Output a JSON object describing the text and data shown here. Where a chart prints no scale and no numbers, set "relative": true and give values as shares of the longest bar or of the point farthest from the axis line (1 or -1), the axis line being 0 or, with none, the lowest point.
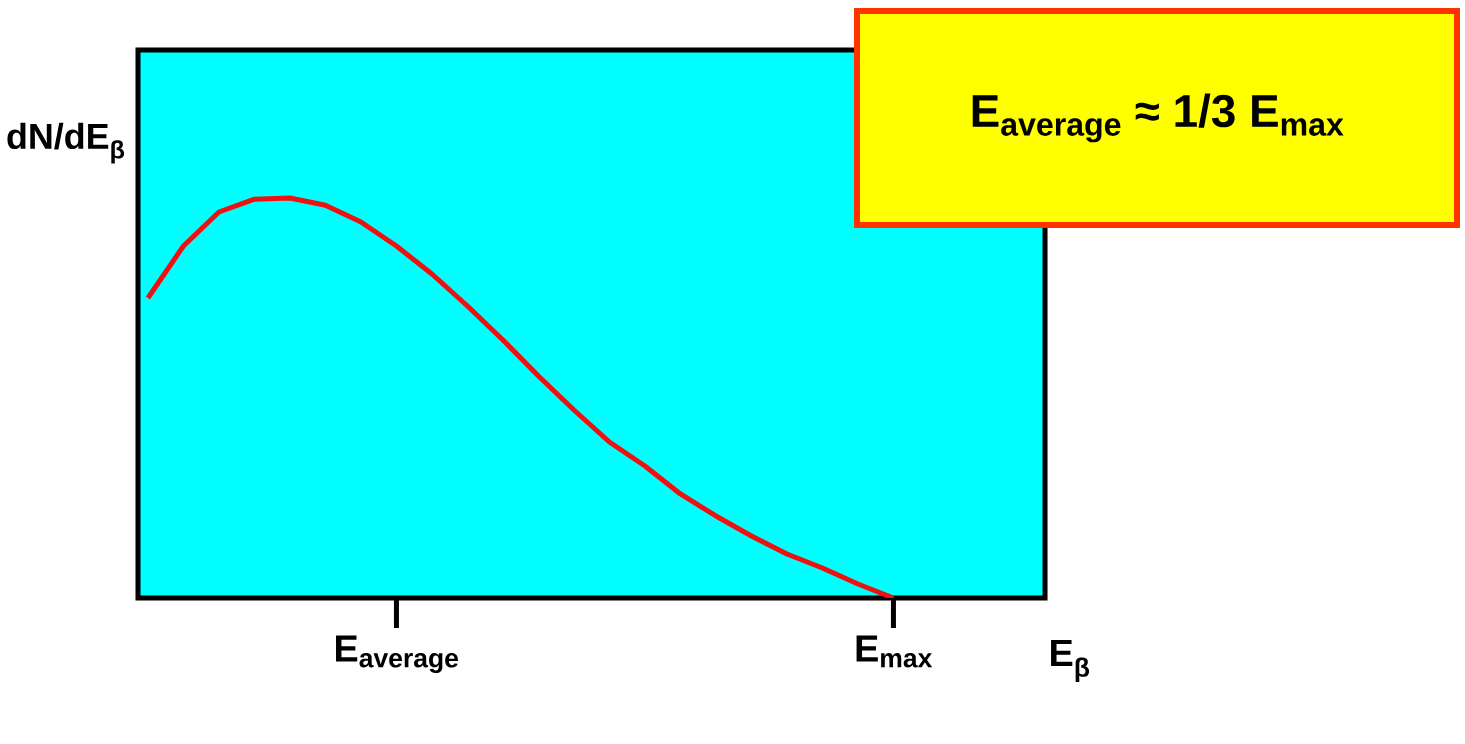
{
  "chart_data": {
    "type": "line",
    "relative": true,
    "ylabel": "dN/dE$_{β}$",
    "xlabel": "E$_{β}$",
    "categories": [
      null,
      null,
      null,
      null,
      null,
      null,
      null,
      "E$_{average}$",
      null,
      null,
      null,
      null,
      null,
      null,
      null,
      null,
      null,
      null,
      null,
      null,
      null,
      "E$_{max}$"
    ],
    "series": [
      {
        "color": "#f01010",
        "values": [
          0.75,
          0.88,
          0.965,
          0.997,
          1.0,
          0.982,
          0.94,
          0.88,
          0.81,
          0.73,
          0.645,
          0.555,
          0.47,
          0.39,
          0.33,
          0.26,
          0.205,
          0.155,
          0.11,
          0.075,
          0.035,
          0.0
        ]
      }
    ],
    "annotations": [
      "E$_{average}$ ≈ 1/3 E$_{max}$"
    ],
    "marker": "none",
    "line_style": "solid",
    "grid": false
  }
}
